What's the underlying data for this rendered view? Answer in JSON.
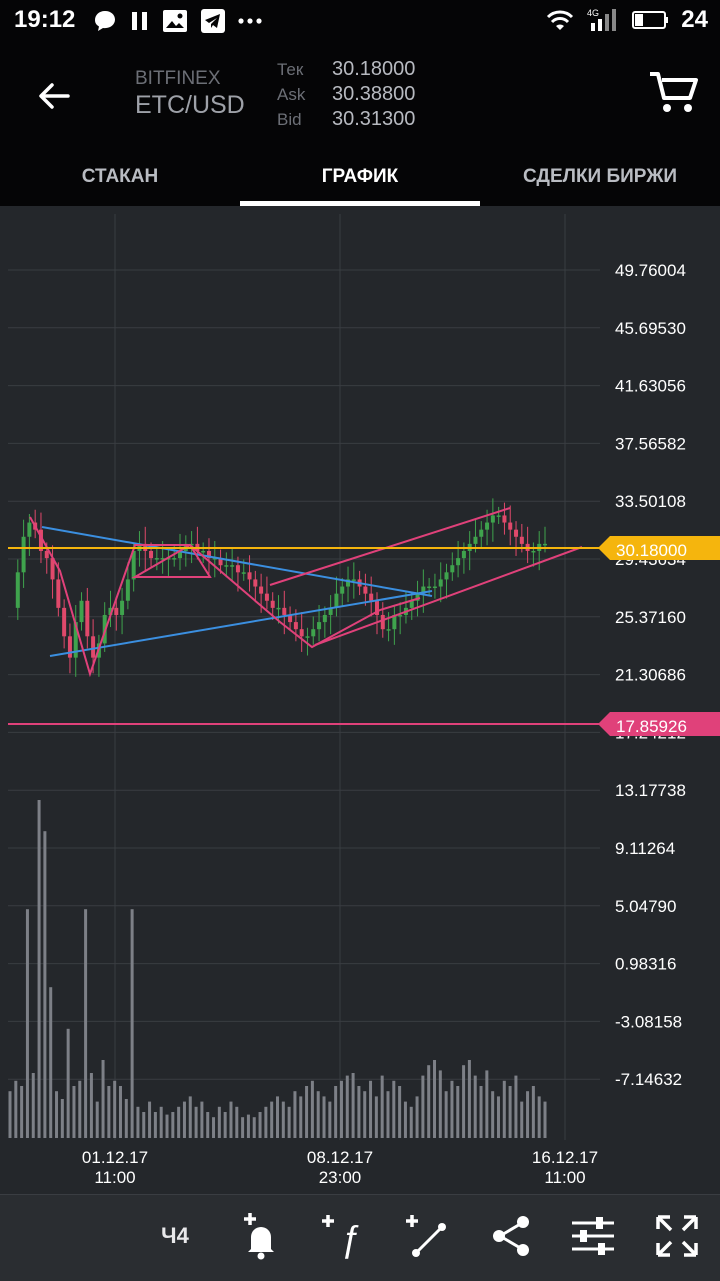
{
  "status_bar": {
    "time": "19:12",
    "network": "4G",
    "battery": "24",
    "left_icons": [
      "chat-icon",
      "pause-icon",
      "image-icon",
      "telegram-icon",
      "more-icon"
    ],
    "right_icons": [
      "wifi-icon",
      "signal-icon",
      "battery-icon"
    ]
  },
  "header": {
    "exchange": "BITFINEX",
    "pair": "ETC/USD",
    "quotes": [
      {
        "label": "Тек",
        "value": "30.18000"
      },
      {
        "label": "Ask",
        "value": "30.38800"
      },
      {
        "label": "Bid",
        "value": "30.31300"
      }
    ]
  },
  "tabs": [
    {
      "label": "СТАКАН",
      "active": false
    },
    {
      "label": "ГРАФИК",
      "active": true
    },
    {
      "label": "СДЕЛКИ БИРЖИ",
      "active": false
    }
  ],
  "toolbar": {
    "timeframe": "Ч4",
    "icons": [
      "add-alert-icon",
      "add-indicator-icon",
      "add-line-icon",
      "share-icon",
      "settings-sliders-icon",
      "fullscreen-icon"
    ]
  },
  "colors": {
    "background": "#24272b",
    "up": "#3fa34d",
    "down": "#e0496b",
    "current_price": "#f5b50d",
    "alert_line": "#e0417a",
    "trendline_blue": "#3b8fe0",
    "trendline_pink": "#e0417a"
  },
  "chart_data": {
    "type": "candlestick",
    "y_ticks": [
      "49.76004",
      "45.69530",
      "41.63056",
      "37.56582",
      "33.50108",
      "29.43634",
      "25.37160",
      "21.30686",
      "17.24212",
      "13.17738",
      "9.11264",
      "5.04790",
      "0.98316",
      "-3.08158",
      "-7.14632"
    ],
    "x_ticks": [
      {
        "date": "01.12.17",
        "time": "11:00"
      },
      {
        "date": "08.12.17",
        "time": "23:00"
      },
      {
        "date": "16.12.17",
        "time": "11:00"
      }
    ],
    "price_line": {
      "value": 30.18,
      "label": "30.18000"
    },
    "alert_line": {
      "value": 17.85926,
      "label": "17.85926"
    },
    "series": [
      {
        "values": [
          26.0,
          28.5,
          31.0,
          32.0,
          31.5,
          30.0,
          29.5,
          28.0,
          26.0,
          24.0,
          22.5,
          25.0,
          26.5,
          24.0,
          22.5,
          23.5,
          25.5,
          26.0,
          25.5,
          26.5,
          28.0,
          30.0,
          30.5,
          30.0,
          29.5,
          29.5,
          29.5,
          29.5,
          29.5,
          30.0,
          30.5,
          30.5,
          30.0,
          30.0,
          29.5,
          29.5,
          29.0,
          29.0,
          29.0,
          28.5,
          28.5,
          28.0,
          27.5,
          27.0,
          26.5,
          26.0,
          26.0,
          25.5,
          25.0,
          24.5,
          24.0,
          24.0,
          24.5,
          25.0,
          25.5,
          26.0,
          27.0,
          27.5,
          28.0,
          28.0,
          27.5,
          27.0,
          26.5,
          25.5,
          24.5,
          24.5,
          25.5,
          25.5,
          26.0,
          26.5,
          27.0,
          27.5,
          27.5,
          27.5,
          28.0,
          28.5,
          29.0,
          29.5,
          30.0,
          30.5,
          31.0,
          31.5,
          32.0,
          32.5,
          32.5,
          32.0,
          31.5,
          31.0,
          30.5,
          30.0,
          30.0,
          30.5,
          30.5
        ]
      }
    ],
    "volumes": [
      18,
      22,
      20,
      48,
      25,
      68,
      20,
      58,
      18,
      15,
      42,
      20,
      22,
      18,
      25,
      14,
      30,
      20,
      22,
      20,
      15,
      25,
      12,
      10,
      14,
      10,
      12,
      9,
      10,
      12,
      14,
      16,
      12,
      14,
      10,
      8,
      12,
      10,
      14,
      12,
      8,
      9,
      8,
      10,
      12,
      14,
      16,
      14,
      12,
      18,
      16,
      20,
      22,
      18,
      16,
      14,
      20,
      22,
      24,
      25,
      20,
      18,
      22,
      16,
      24,
      18,
      22,
      20,
      14,
      12,
      16,
      24,
      28,
      30,
      26,
      18,
      22,
      20,
      28,
      30,
      24,
      20,
      26,
      18,
      16,
      22,
      20,
      24,
      14,
      18,
      20,
      16,
      14
    ],
    "volume_peaks": [
      [
        3,
        88
      ],
      [
        5,
        130
      ],
      [
        6,
        118
      ],
      [
        13,
        88
      ],
      [
        21,
        88
      ]
    ]
  }
}
